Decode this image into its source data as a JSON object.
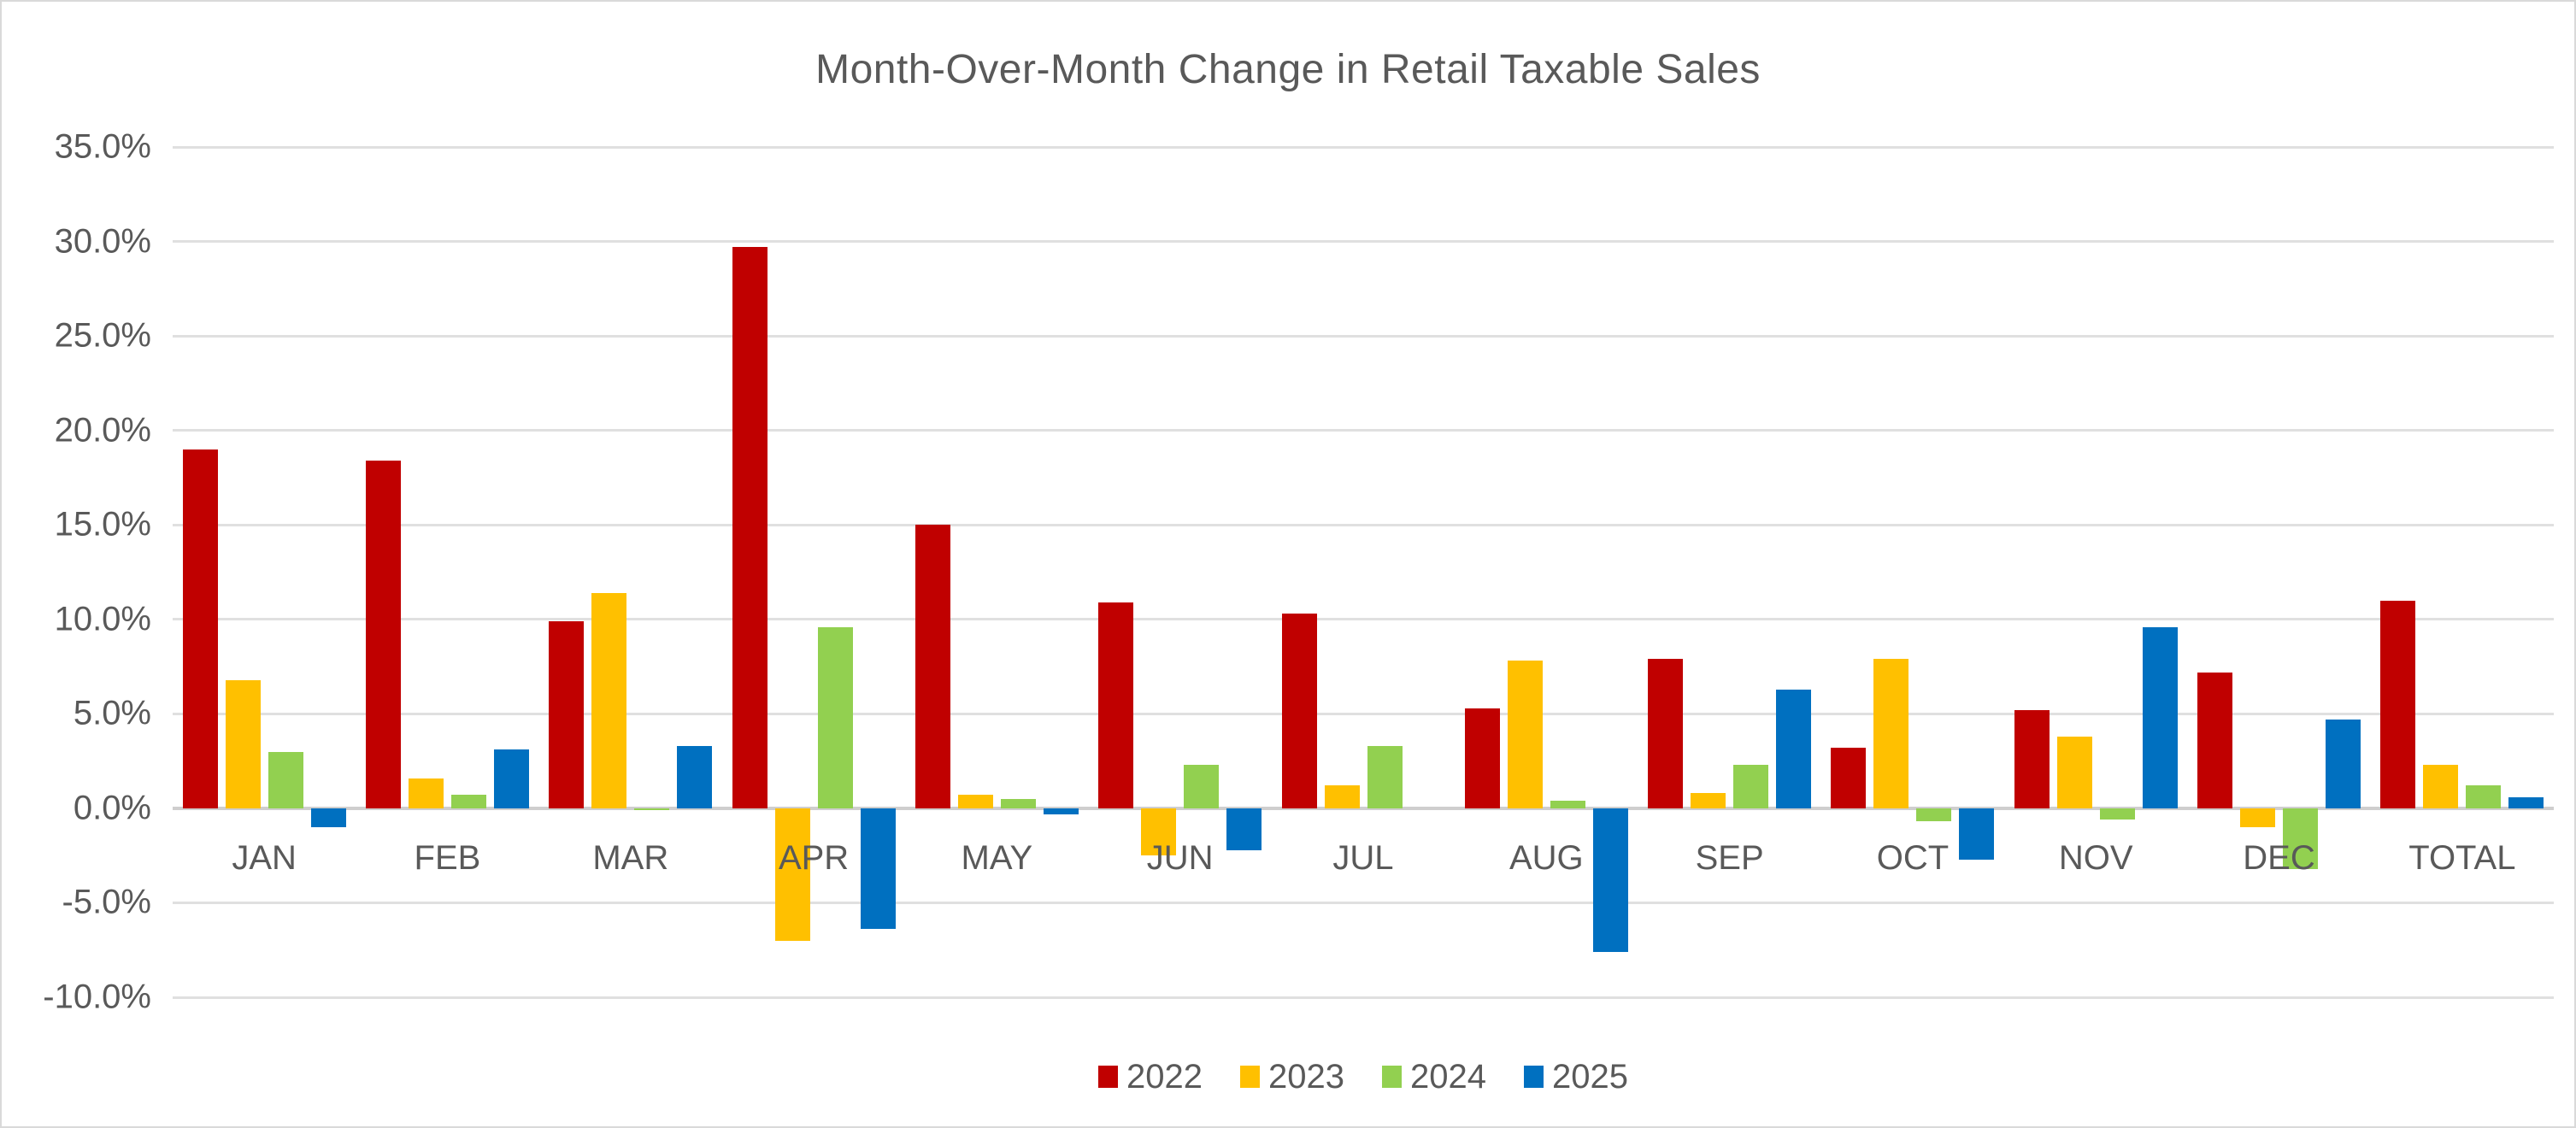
{
  "title": "Month-Over-Month Change in Retail Taxable Sales",
  "colors": {
    "series_2022": "#C00000",
    "series_2023": "#FFC000",
    "series_2024": "#92D050",
    "series_2025": "#0070C0",
    "text": "#595959",
    "gridline": "#E0E0E0",
    "axis_line": "#CFCECE",
    "background": "#FFFFFF",
    "frame_border": "#D9D9D9"
  },
  "chart_data": {
    "type": "bar",
    "title": "Month-Over-Month Change in Retail Taxable Sales",
    "categories": [
      "JAN",
      "FEB",
      "MAR",
      "APR",
      "MAY",
      "JUN",
      "JUL",
      "AUG",
      "SEP",
      "OCT",
      "NOV",
      "DEC",
      "TOTAL"
    ],
    "series": [
      {
        "name": "2022",
        "color": "#C00000",
        "values": [
          19.0,
          18.4,
          9.9,
          29.7,
          15.0,
          10.9,
          10.3,
          5.3,
          7.9,
          3.2,
          5.2,
          7.2,
          11.0
        ]
      },
      {
        "name": "2023",
        "color": "#FFC000",
        "values": [
          6.8,
          1.6,
          11.4,
          -7.0,
          0.7,
          -2.5,
          1.2,
          7.8,
          0.8,
          7.9,
          3.8,
          -1.0,
          2.3
        ]
      },
      {
        "name": "2024",
        "color": "#92D050",
        "values": [
          3.0,
          0.7,
          -0.1,
          9.6,
          0.5,
          2.3,
          3.3,
          0.4,
          2.3,
          -0.7,
          -0.6,
          -3.2,
          1.2
        ]
      },
      {
        "name": "2025",
        "color": "#0070C0",
        "values": [
          -1.0,
          3.1,
          3.3,
          -6.4,
          -0.3,
          -2.2,
          null,
          -7.6,
          6.3,
          -2.7,
          9.6,
          4.7,
          0.6
        ]
      }
    ],
    "xlabel": "",
    "ylabel": "",
    "ylim": [
      -10,
      35
    ],
    "ytick_step": 5,
    "yticks": [
      35,
      30,
      25,
      20,
      15,
      10,
      5,
      0,
      -5,
      -10
    ],
    "ytick_labels": [
      "35.0%",
      "30.0%",
      "25.0%",
      "20.0%",
      "15.0%",
      "10.0%",
      "5.0%",
      "0.0%",
      "-5.0%",
      "-10.0%"
    ],
    "grid": true,
    "legend_position": "bottom-center"
  }
}
